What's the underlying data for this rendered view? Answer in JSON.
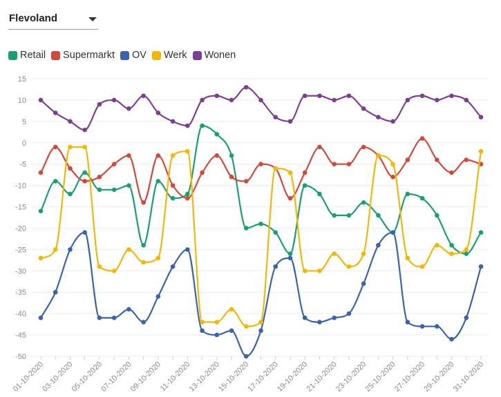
{
  "region": {
    "selected": "Flevoland"
  },
  "chart_data": {
    "type": "line",
    "title": "",
    "xlabel": "",
    "ylabel": "",
    "ylim": [
      -50,
      15
    ],
    "yticks": [
      15,
      10,
      5,
      0,
      -5,
      -10,
      -15,
      -20,
      -25,
      -30,
      -35,
      -40,
      -45,
      -50
    ],
    "grid": true,
    "legend_position": "top-left",
    "x": [
      "01-10-2020",
      "02-10-2020",
      "03-10-2020",
      "04-10-2020",
      "05-10-2020",
      "06-10-2020",
      "07-10-2020",
      "08-10-2020",
      "09-10-2020",
      "10-10-2020",
      "11-10-2020",
      "12-10-2020",
      "13-10-2020",
      "14-10-2020",
      "15-10-2020",
      "16-10-2020",
      "17-10-2020",
      "18-10-2020",
      "19-10-2020",
      "20-10-2020",
      "21-10-2020",
      "22-10-2020",
      "23-10-2020",
      "24-10-2020",
      "25-10-2020",
      "26-10-2020",
      "27-10-2020",
      "28-10-2020",
      "29-10-2020",
      "30-10-2020",
      "31-10-2020"
    ],
    "xtick_labels": [
      "01-10-2020",
      "03-10-2020",
      "05-10-2020",
      "07-10-2020",
      "09-10-2020",
      "11-10-2020",
      "13-10-2020",
      "15-10-2020",
      "17-10-2020",
      "19-10-2020",
      "21-10-2020",
      "23-10-2020",
      "25-10-2020",
      "27-10-2020",
      "29-10-2020",
      "31-10-2020"
    ],
    "series": [
      {
        "name": "Retail",
        "color": "#1a9e74",
        "values": [
          -16,
          -9,
          -12,
          -7,
          -11,
          -11,
          -10,
          -24,
          -9,
          -13,
          -12,
          4,
          2,
          -3,
          -20,
          -19,
          -21,
          -26,
          -10,
          -12,
          -17,
          -17,
          -14,
          -17,
          -21,
          -12,
          -13,
          -17,
          -24,
          -26,
          -21
        ]
      },
      {
        "name": "Supermarkt",
        "color": "#d1493a",
        "values": [
          -7,
          -1,
          -6,
          -9,
          -8,
          -5,
          -3,
          -14,
          -3,
          -10,
          -13,
          -7,
          -3,
          -8,
          -9,
          -5,
          -6,
          -13,
          -7,
          -1,
          -5,
          -5,
          -1,
          -3,
          -8,
          -4,
          1,
          -4,
          -7,
          -4,
          -5
        ]
      },
      {
        "name": "OV",
        "color": "#3a62ad",
        "values": [
          -41,
          -35,
          -25,
          -21,
          -41,
          -41,
          -39,
          -42,
          -36,
          -29,
          -25,
          -44,
          -45,
          -44,
          -50,
          -44,
          -29,
          -27,
          -41,
          -42,
          -41,
          -40,
          -33,
          -24,
          -21,
          -42,
          -43,
          -43,
          -46,
          -41,
          -29
        ]
      },
      {
        "name": "Werk",
        "color": "#f2b705",
        "values": [
          -27,
          -25,
          -1,
          -1,
          -29,
          -30,
          -25,
          -28,
          -27,
          -3,
          -2,
          -42,
          -42,
          -39,
          -43,
          -42,
          -6,
          -7,
          -30,
          -30,
          -26,
          -29,
          -26,
          -3,
          -5,
          -27,
          -29,
          -24,
          -26,
          -25,
          -2
        ]
      },
      {
        "name": "Wonen",
        "color": "#7b3f91",
        "values": [
          10,
          7,
          5,
          3,
          9,
          10,
          8,
          11,
          7,
          5,
          4,
          10,
          11,
          10,
          13,
          10,
          6,
          5,
          11,
          11,
          10,
          11,
          8,
          6,
          5,
          10,
          11,
          10,
          11,
          10,
          6
        ]
      }
    ]
  }
}
